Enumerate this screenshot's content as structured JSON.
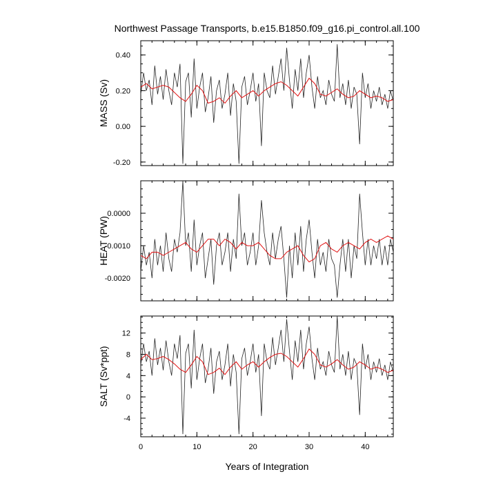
{
  "chart_data": {
    "type": "line",
    "title": "Northwest Passage Transports, b.e15.B1850.f09_g16.pi_control.all.100",
    "xlabel": "Years of Integration",
    "xlim": [
      0,
      45
    ],
    "x_ticks": [
      "0",
      "10",
      "20",
      "30",
      "40"
    ],
    "x_tick_values": [
      0,
      10,
      20,
      30,
      40
    ],
    "series_colors": {
      "monthly": "#222222",
      "smoothed": "#e01010"
    },
    "panels": [
      {
        "ylabel": "MASS (Sv)",
        "ylim": [
          -0.22,
          0.48
        ],
        "y_ticks": [
          "-0.20",
          "0.00",
          "0.20",
          "0.40"
        ],
        "y_tick_values": [
          -0.2,
          0.0,
          0.2,
          0.4
        ],
        "smoothed": {
          "x": [
            0,
            1,
            2,
            3,
            4,
            5,
            6,
            7,
            8,
            9,
            10,
            11,
            12,
            13,
            14,
            15,
            16,
            17,
            18,
            19,
            20,
            21,
            22,
            23,
            24,
            25,
            26,
            27,
            28,
            29,
            30,
            31,
            32,
            33,
            34,
            35,
            36,
            37,
            38,
            39,
            40,
            41,
            42,
            43,
            44,
            45
          ],
          "y": [
            0.22,
            0.24,
            0.21,
            0.22,
            0.23,
            0.22,
            0.19,
            0.16,
            0.14,
            0.18,
            0.23,
            0.2,
            0.13,
            0.14,
            0.16,
            0.13,
            0.17,
            0.2,
            0.16,
            0.18,
            0.2,
            0.17,
            0.2,
            0.22,
            0.24,
            0.25,
            0.23,
            0.2,
            0.17,
            0.22,
            0.27,
            0.24,
            0.18,
            0.17,
            0.19,
            0.21,
            0.18,
            0.16,
            0.17,
            0.2,
            0.18,
            0.16,
            0.17,
            0.16,
            0.14,
            0.15
          ]
        },
        "monthly": {
          "x": [
            0,
            0.5,
            1,
            1.5,
            2,
            2.5,
            3,
            3.5,
            4,
            4.5,
            5,
            5.5,
            6,
            6.5,
            7,
            7.5,
            8,
            8.5,
            9,
            9.5,
            10,
            10.5,
            11,
            11.5,
            12,
            12.5,
            13,
            13.5,
            14,
            14.5,
            15,
            15.5,
            16,
            16.5,
            17,
            17.5,
            18,
            18.5,
            19,
            19.5,
            20,
            20.5,
            21,
            21.5,
            22,
            22.5,
            23,
            23.5,
            24,
            24.5,
            25,
            25.5,
            26,
            26.5,
            27,
            27.5,
            28,
            28.5,
            29,
            29.5,
            30,
            30.5,
            31,
            31.5,
            32,
            32.5,
            33,
            33.5,
            34,
            34.5,
            35,
            35.5,
            36,
            36.5,
            37,
            37.5,
            38,
            38.5,
            39,
            39.5,
            40,
            40.5,
            41,
            41.5,
            42,
            42.5,
            43,
            43.5,
            44,
            44.5,
            45
          ],
          "y": [
            0.18,
            0.3,
            0.2,
            0.26,
            0.12,
            0.34,
            0.18,
            0.28,
            0.15,
            0.32,
            0.2,
            0.12,
            0.3,
            0.22,
            0.35,
            -0.21,
            0.25,
            0.3,
            0.05,
            0.38,
            0.1,
            0.22,
            0.3,
            0.08,
            0.16,
            0.28,
            0.02,
            0.2,
            0.26,
            0.1,
            0.18,
            0.3,
            0.06,
            0.24,
            0.14,
            -0.21,
            0.22,
            0.28,
            0.12,
            0.2,
            0.3,
            0.14,
            0.24,
            -0.11,
            0.3,
            0.2,
            0.16,
            0.34,
            0.18,
            0.28,
            0.38,
            0.2,
            0.44,
            0.26,
            0.1,
            0.32,
            0.2,
            0.38,
            0.16,
            0.3,
            0.4,
            0.22,
            0.1,
            0.28,
            0.16,
            0.2,
            0.12,
            0.26,
            0.18,
            0.14,
            0.46,
            0.16,
            0.24,
            0.12,
            0.26,
            0.1,
            0.22,
            0.18,
            -0.1,
            0.3,
            0.16,
            0.24,
            0.1,
            0.2,
            0.14,
            0.22,
            0.12,
            0.18,
            0.1,
            0.2,
            0.14
          ]
        }
      },
      {
        "ylabel": "HEAT (PW)",
        "ylim": [
          -0.0027,
          0.001
        ],
        "y_ticks": [
          "-0.0020",
          "-0.0010",
          "0.0000"
        ],
        "y_tick_values": [
          -0.002,
          -0.001,
          0.0
        ],
        "smoothed": {
          "x": [
            0,
            1,
            2,
            3,
            4,
            5,
            6,
            7,
            8,
            9,
            10,
            11,
            12,
            13,
            14,
            15,
            16,
            17,
            18,
            19,
            20,
            21,
            22,
            23,
            24,
            25,
            26,
            27,
            28,
            29,
            30,
            31,
            32,
            33,
            34,
            35,
            36,
            37,
            38,
            39,
            40,
            41,
            42,
            43,
            44,
            45
          ],
          "y": [
            -0.0013,
            -0.0014,
            -0.0012,
            -0.0012,
            -0.0013,
            -0.0012,
            -0.0011,
            -0.001,
            -0.0009,
            -0.0011,
            -0.0012,
            -0.001,
            -0.0008,
            -0.0008,
            -0.001,
            -0.0008,
            -0.0009,
            -0.0011,
            -0.0009,
            -0.001,
            -0.001,
            -0.0009,
            -0.0011,
            -0.0013,
            -0.0014,
            -0.0014,
            -0.0012,
            -0.0011,
            -0.001,
            -0.0013,
            -0.0015,
            -0.0014,
            -0.001,
            -0.0009,
            -0.0011,
            -0.0012,
            -0.001,
            -0.0009,
            -0.001,
            -0.0011,
            -0.0009,
            -0.0008,
            -0.0009,
            -0.0008,
            -0.0007,
            -0.0008
          ]
        },
        "monthly": {
          "x": [
            0,
            0.5,
            1,
            1.5,
            2,
            2.5,
            3,
            3.5,
            4,
            4.5,
            5,
            5.5,
            6,
            6.5,
            7,
            7.5,
            8,
            8.5,
            9,
            9.5,
            10,
            10.5,
            11,
            11.5,
            12,
            12.5,
            13,
            13.5,
            14,
            14.5,
            15,
            15.5,
            16,
            16.5,
            17,
            17.5,
            18,
            18.5,
            19,
            19.5,
            20,
            20.5,
            21,
            21.5,
            22,
            22.5,
            23,
            23.5,
            24,
            24.5,
            25,
            25.5,
            26,
            26.5,
            27,
            27.5,
            28,
            28.5,
            29,
            29.5,
            30,
            30.5,
            31,
            31.5,
            32,
            32.5,
            33,
            33.5,
            34,
            34.5,
            35,
            35.5,
            36,
            36.5,
            37,
            37.5,
            38,
            38.5,
            39,
            39.5,
            40,
            40.5,
            41,
            41.5,
            42,
            42.5,
            43,
            43.5,
            44,
            44.5,
            45
          ],
          "y": [
            -0.0018,
            -0.001,
            -0.0016,
            -0.0012,
            -0.002,
            -0.0008,
            -0.0016,
            -0.001,
            -0.0018,
            -0.0006,
            -0.0014,
            -0.0018,
            -0.0008,
            -0.0012,
            -0.0006,
            0.001,
            -0.001,
            -0.0006,
            -0.0018,
            -0.0002,
            -0.0016,
            -0.001,
            -0.0006,
            -0.002,
            -0.0014,
            -0.0008,
            -0.0022,
            -0.001,
            -0.0006,
            -0.0016,
            -0.0012,
            -0.0006,
            -0.0018,
            -0.0008,
            -0.0014,
            0.0006,
            -0.001,
            -0.0006,
            -0.0016,
            -0.0012,
            -0.0006,
            -0.0016,
            -0.001,
            0.0004,
            -0.0006,
            -0.0012,
            -0.0016,
            -0.0006,
            -0.0014,
            -0.0008,
            -0.0004,
            -0.0014,
            -0.0026,
            -0.001,
            -0.002,
            -0.0006,
            -0.0016,
            -0.0004,
            -0.0018,
            -0.0008,
            -0.0002,
            -0.0012,
            -0.002,
            -0.0008,
            -0.0016,
            -0.0012,
            -0.0018,
            -0.0008,
            -0.0014,
            -0.0016,
            -0.0026,
            -0.0016,
            -0.0008,
            -0.0018,
            -0.0008,
            -0.002,
            -0.001,
            -0.0014,
            0.0006,
            -0.0006,
            -0.0016,
            -0.0008,
            -0.0016,
            -0.001,
            -0.0014,
            -0.0008,
            -0.0016,
            -0.001,
            -0.0016,
            -0.0008,
            -0.0012
          ]
        }
      },
      {
        "ylabel": "SALT (Sv*ppt)",
        "ylim": [
          -7.5,
          15.2
        ],
        "y_ticks": [
          "-4",
          "0",
          "4",
          "8",
          "12"
        ],
        "y_tick_values": [
          -4,
          0,
          4,
          8,
          12
        ],
        "smoothed": {
          "x": [
            0,
            1,
            2,
            3,
            4,
            5,
            6,
            7,
            8,
            9,
            10,
            11,
            12,
            13,
            14,
            15,
            16,
            17,
            18,
            19,
            20,
            21,
            22,
            23,
            24,
            25,
            26,
            27,
            28,
            29,
            30,
            31,
            32,
            33,
            34,
            35,
            36,
            37,
            38,
            39,
            40,
            41,
            42,
            43,
            44,
            45
          ],
          "y": [
            7.0,
            8.0,
            7.0,
            7.2,
            7.6,
            7.0,
            6.2,
            5.2,
            4.6,
            6.0,
            7.6,
            6.6,
            4.2,
            4.6,
            5.4,
            4.2,
            5.6,
            6.6,
            5.2,
            6.0,
            6.6,
            5.6,
            6.6,
            7.4,
            8.0,
            8.2,
            7.6,
            6.6,
            5.6,
            7.2,
            9.0,
            8.0,
            6.0,
            5.6,
            6.2,
            7.0,
            6.0,
            5.2,
            5.6,
            6.6,
            6.0,
            5.2,
            5.6,
            5.2,
            4.6,
            5.0
          ]
        },
        "monthly": {
          "x": [
            0,
            0.5,
            1,
            1.5,
            2,
            2.5,
            3,
            3.5,
            4,
            4.5,
            5,
            5.5,
            6,
            6.5,
            7,
            7.5,
            8,
            8.5,
            9,
            9.5,
            10,
            10.5,
            11,
            11.5,
            12,
            12.5,
            13,
            13.5,
            14,
            14.5,
            15,
            15.5,
            16,
            16.5,
            17,
            17.5,
            18,
            18.5,
            19,
            19.5,
            20,
            20.5,
            21,
            21.5,
            22,
            22.5,
            23,
            23.5,
            24,
            24.5,
            25,
            25.5,
            26,
            26.5,
            27,
            27.5,
            28,
            28.5,
            29,
            29.5,
            30,
            30.5,
            31,
            31.5,
            32,
            32.5,
            33,
            33.5,
            34,
            34.5,
            35,
            35.5,
            36,
            36.5,
            37,
            37.5,
            38,
            38.5,
            39,
            39.5,
            40,
            40.5,
            41,
            41.5,
            42,
            42.5,
            43,
            43.5,
            44,
            44.5,
            45
          ],
          "y": [
            6.0,
            10.0,
            6.6,
            8.6,
            4.0,
            11.0,
            6.0,
            9.2,
            5.0,
            10.6,
            6.6,
            4.0,
            10.0,
            7.2,
            11.6,
            -7.0,
            8.2,
            10.0,
            1.6,
            12.6,
            3.2,
            7.2,
            10.0,
            2.6,
            5.2,
            9.2,
            0.6,
            6.6,
            8.6,
            3.2,
            6.0,
            10.0,
            2.0,
            8.0,
            4.6,
            -7.0,
            7.2,
            9.2,
            4.0,
            6.6,
            10.0,
            4.6,
            8.0,
            -3.6,
            10.0,
            6.6,
            5.2,
            11.2,
            6.0,
            9.2,
            12.6,
            6.6,
            14.6,
            8.6,
            3.2,
            10.6,
            6.6,
            12.6,
            5.2,
            10.0,
            13.2,
            7.2,
            3.2,
            9.2,
            5.2,
            6.6,
            4.0,
            8.6,
            6.0,
            4.6,
            15.2,
            5.2,
            8.0,
            4.0,
            8.6,
            3.2,
            7.2,
            6.0,
            -3.4,
            10.0,
            5.2,
            8.0,
            3.2,
            6.6,
            4.6,
            7.2,
            4.0,
            6.0,
            3.2,
            6.6,
            4.6
          ]
        }
      }
    ]
  }
}
